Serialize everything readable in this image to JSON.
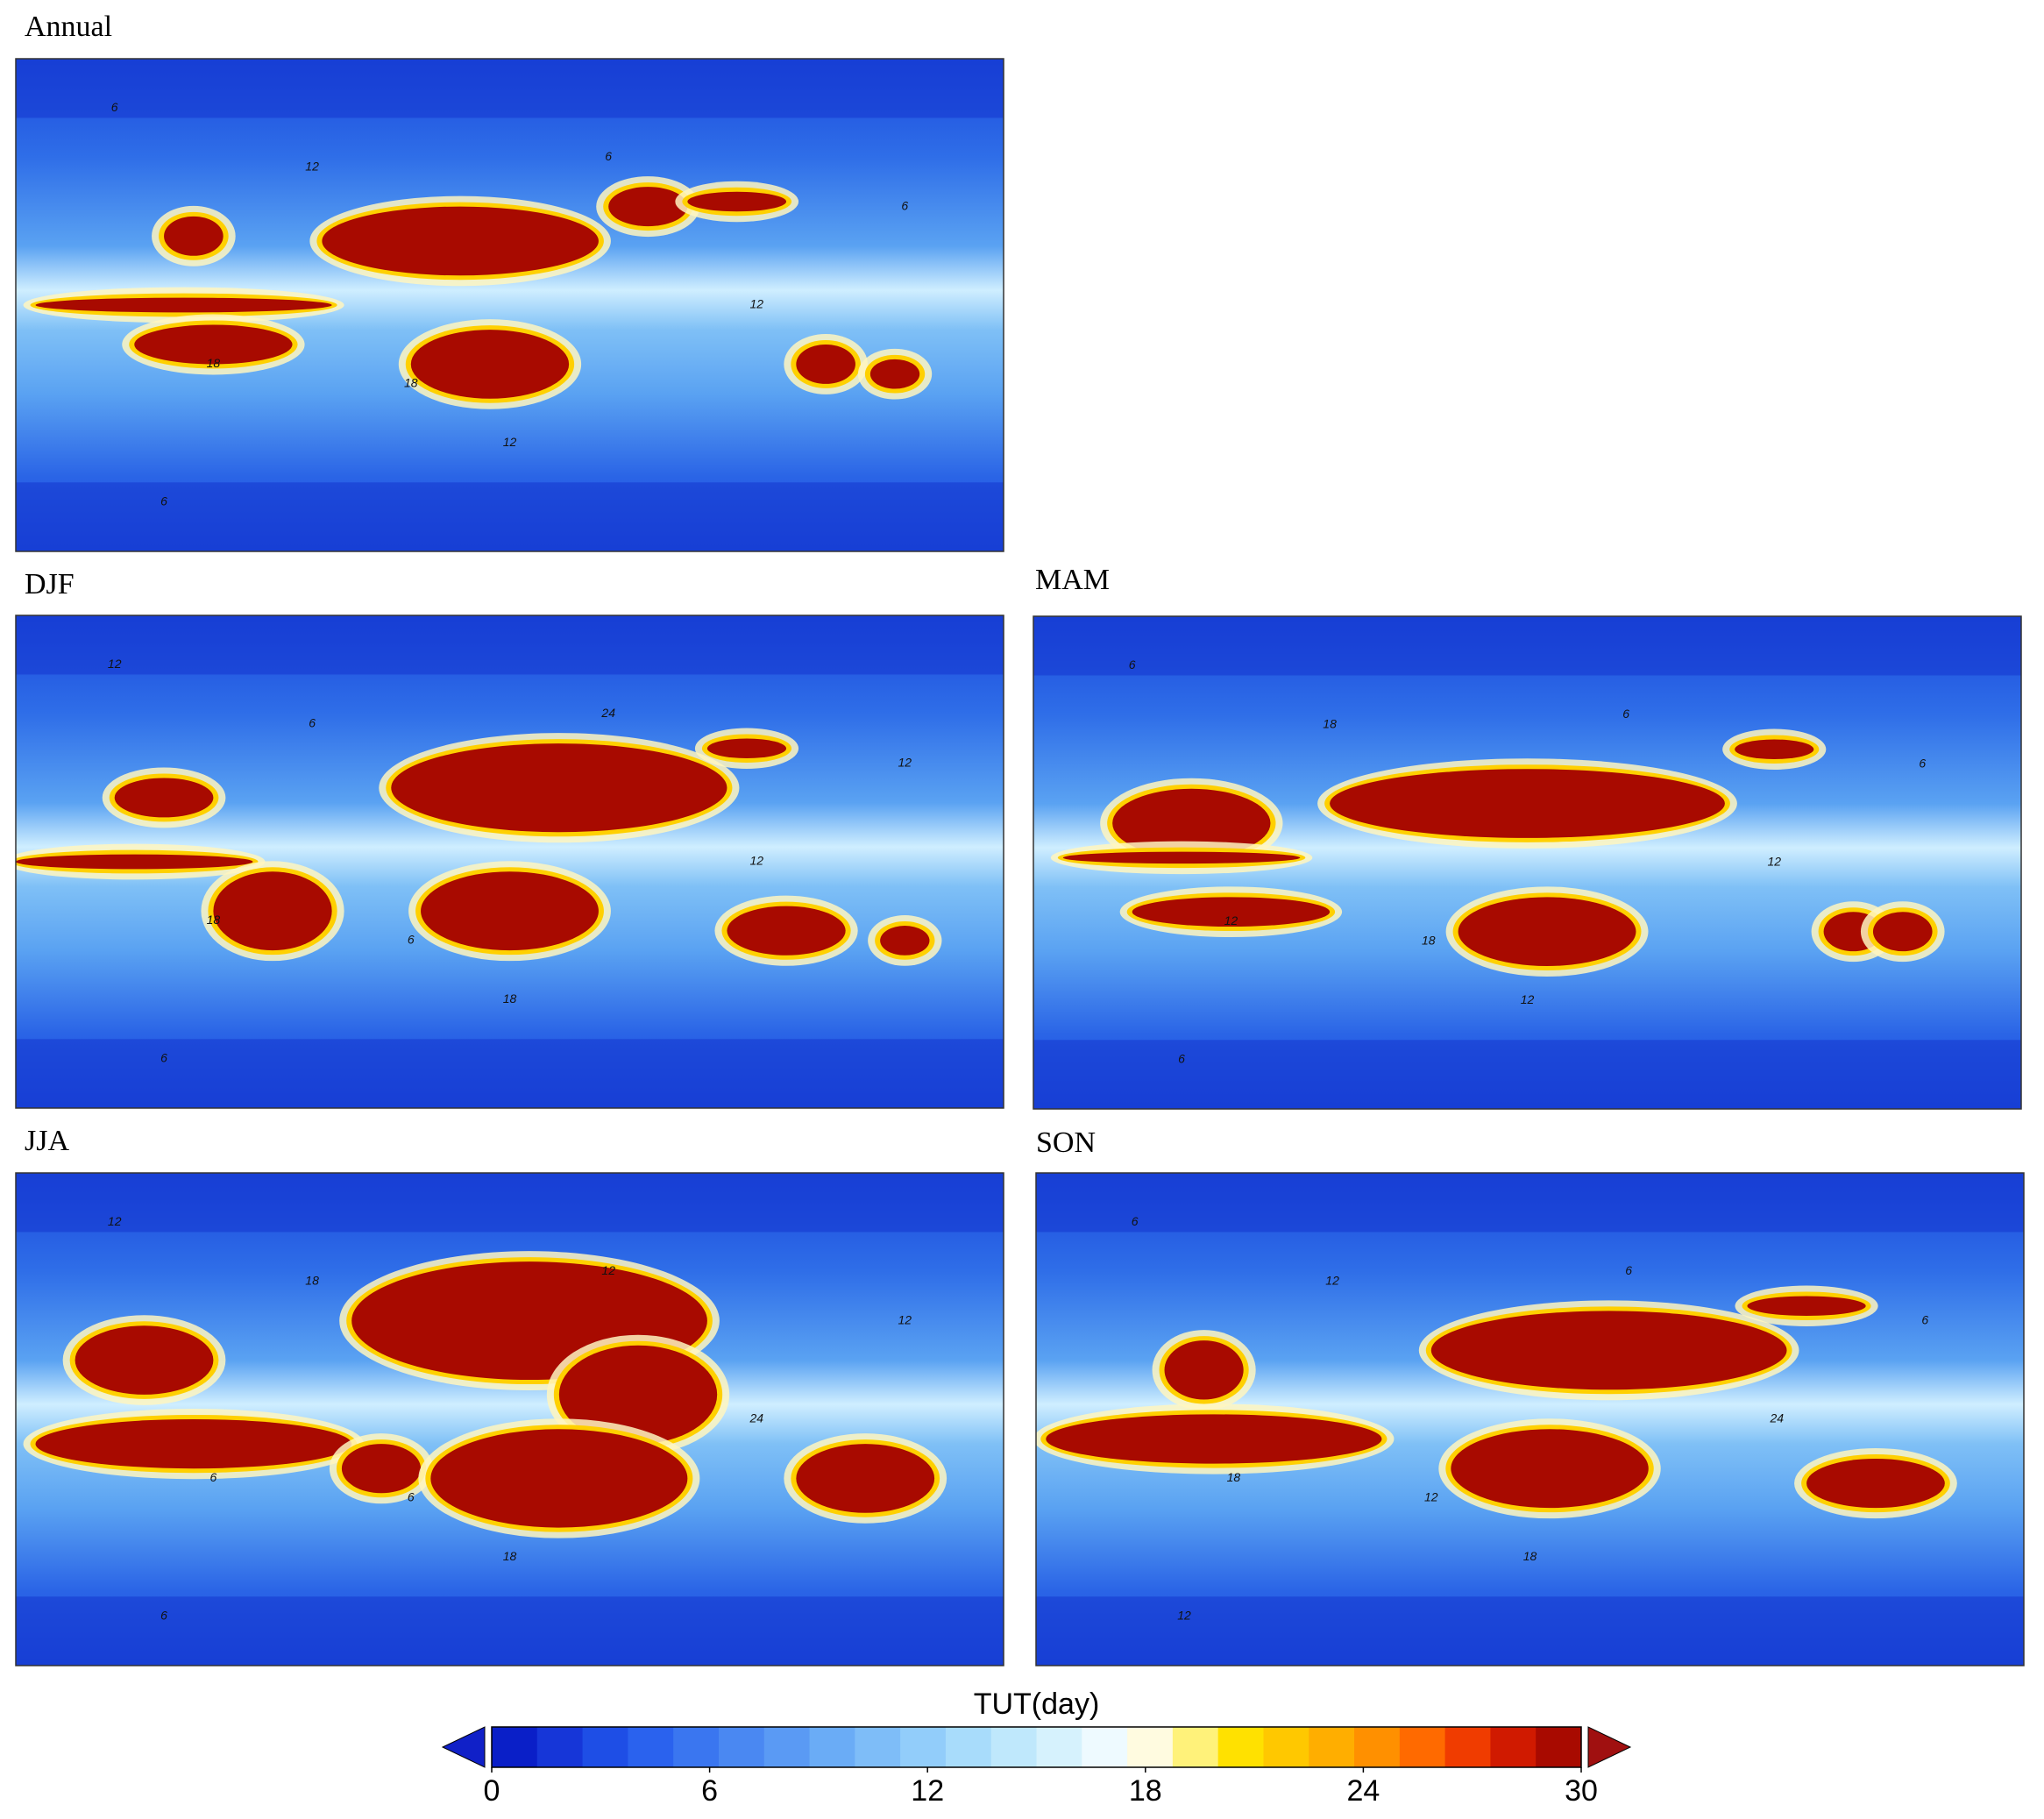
{
  "panels": [
    {
      "title": "Annual",
      "contour_labels": [
        "6",
        "12",
        "18",
        "6",
        "12",
        "18",
        "6",
        "12",
        "6"
      ]
    },
    {
      "title": "DJF",
      "contour_labels": [
        "12",
        "6",
        "18",
        "24",
        "12",
        "6",
        "12",
        "18",
        "6"
      ]
    },
    {
      "title": "MAM",
      "contour_labels": [
        "6",
        "18",
        "12",
        "6",
        "12",
        "18",
        "6",
        "12",
        "6"
      ]
    },
    {
      "title": "JJA",
      "contour_labels": [
        "12",
        "18",
        "6",
        "12",
        "24",
        "6",
        "12",
        "18",
        "6"
      ]
    },
    {
      "title": "SON",
      "contour_labels": [
        "6",
        "12",
        "18",
        "6",
        "24",
        "12",
        "6",
        "18",
        "12"
      ]
    }
  ],
  "colorbar": {
    "label": "TUT(day)",
    "lim": [
      0,
      30
    ],
    "ticks": [
      0,
      6,
      12,
      18,
      24,
      30
    ],
    "colors": [
      "#0a1fc8",
      "#1636d8",
      "#1e4ee6",
      "#2a62ee",
      "#3a76f0",
      "#4a88f2",
      "#5a9af4",
      "#6aacf6",
      "#7ebdf8",
      "#92cdfa",
      "#a8dcfb",
      "#bfe8fc",
      "#d6f2fd",
      "#eefaff",
      "#fffbe0",
      "#fff27a",
      "#ffe100",
      "#ffc800",
      "#ffae00",
      "#ff9000",
      "#ff6a00",
      "#f03c00",
      "#d01a00",
      "#a80a00"
    ],
    "under_color": "#1020c8",
    "over_color": "#a01010"
  }
}
